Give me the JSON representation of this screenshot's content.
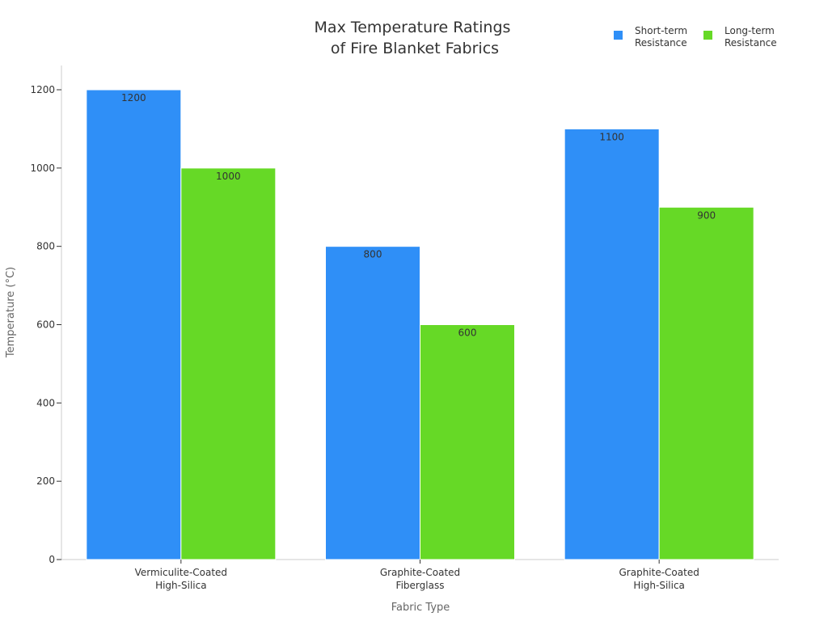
{
  "chart_data": {
    "type": "bar",
    "title": [
      "Max Temperature Ratings",
      "of Fire Blanket Fabrics"
    ],
    "xlabel": "Fabric Type",
    "ylabel": "Temperature (°C)",
    "categories": [
      [
        "Vermiculite-Coated",
        "High-Silica"
      ],
      [
        "Graphite-Coated",
        "Fiberglass"
      ],
      [
        "Graphite-Coated",
        "High-Silica"
      ]
    ],
    "series": [
      {
        "name": [
          "Short-term",
          "Resistance"
        ],
        "values": [
          1200,
          800,
          1100
        ],
        "color": "#2f8ff7"
      },
      {
        "name": [
          "Long-term",
          "Resistance"
        ],
        "values": [
          1000,
          600,
          900
        ],
        "color": "#66d926"
      }
    ],
    "ylim": [
      0,
      1260
    ],
    "yticks": [
      0,
      200,
      400,
      600,
      800,
      1000,
      1200
    ],
    "grid": false,
    "legend_position": "top-right"
  }
}
